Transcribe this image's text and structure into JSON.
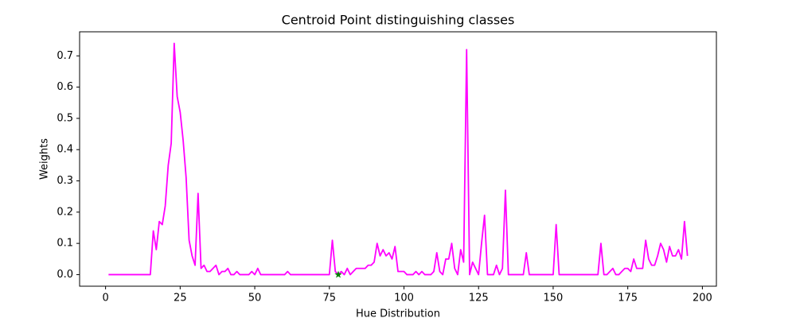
{
  "chart_data": {
    "type": "line",
    "title": "Centroid Point distinguishing classes",
    "x_label": "Hue Distribution",
    "y_label": "Weights",
    "x": [
      1,
      2,
      3,
      4,
      5,
      6,
      7,
      8,
      9,
      10,
      11,
      12,
      13,
      14,
      15,
      16,
      17,
      18,
      19,
      20,
      21,
      22,
      23,
      24,
      25,
      26,
      27,
      28,
      29,
      30,
      31,
      32,
      33,
      34,
      35,
      36,
      37,
      38,
      39,
      40,
      41,
      42,
      43,
      44,
      45,
      46,
      47,
      48,
      49,
      50,
      51,
      52,
      53,
      54,
      55,
      56,
      57,
      58,
      59,
      60,
      61,
      62,
      63,
      64,
      65,
      66,
      67,
      68,
      69,
      70,
      71,
      72,
      73,
      74,
      75,
      76,
      77,
      78,
      79,
      80,
      81,
      82,
      83,
      84,
      85,
      86,
      87,
      88,
      89,
      90,
      91,
      92,
      93,
      94,
      95,
      96,
      97,
      98,
      99,
      100,
      101,
      102,
      103,
      104,
      105,
      106,
      107,
      108,
      109,
      110,
      111,
      112,
      113,
      114,
      115,
      116,
      117,
      118,
      119,
      120,
      121,
      122,
      123,
      124,
      125,
      126,
      127,
      128,
      129,
      130,
      131,
      132,
      133,
      134,
      135,
      136,
      137,
      138,
      139,
      140,
      141,
      142,
      143,
      144,
      145,
      146,
      147,
      148,
      149,
      150,
      151,
      152,
      153,
      154,
      155,
      156,
      157,
      158,
      159,
      160,
      161,
      162,
      163,
      164,
      165,
      166,
      167,
      168,
      169,
      170,
      171,
      172,
      173,
      174,
      175,
      176,
      177,
      178,
      179,
      180,
      181,
      182,
      183,
      184,
      185,
      186,
      187,
      188,
      189,
      190,
      191,
      192,
      193,
      194,
      195
    ],
    "series": [
      {
        "color": "#ff00ff",
        "values": [
          0,
          0,
          0,
          0,
          0,
          0,
          0,
          0,
          0,
          0,
          0,
          0,
          0,
          0,
          0,
          0.14,
          0.08,
          0.17,
          0.16,
          0.22,
          0.35,
          0.42,
          0.74,
          0.57,
          0.52,
          0.43,
          0.31,
          0.11,
          0.06,
          0.03,
          0.26,
          0.02,
          0.03,
          0.01,
          0.01,
          0.02,
          0.03,
          0,
          0.01,
          0.01,
          0.02,
          0,
          0,
          0.01,
          0,
          0,
          0,
          0,
          0.01,
          0,
          0.02,
          0,
          0,
          0,
          0,
          0,
          0,
          0,
          0,
          0,
          0.01,
          0,
          0,
          0,
          0,
          0,
          0,
          0,
          0,
          0,
          0,
          0,
          0,
          0,
          0,
          0.11,
          0.01,
          0,
          0.01,
          0,
          0.02,
          0,
          0.01,
          0.02,
          0.02,
          0.02,
          0.02,
          0.03,
          0.03,
          0.04,
          0.1,
          0.06,
          0.08,
          0.06,
          0.07,
          0.05,
          0.09,
          0.01,
          0.01,
          0.01,
          0,
          0,
          0,
          0.01,
          0,
          0.01,
          0,
          0,
          0,
          0.01,
          0.07,
          0.01,
          0,
          0.05,
          0.05,
          0.1,
          0.02,
          0,
          0.08,
          0.04,
          0.72,
          0,
          0.04,
          0.02,
          0,
          0.1,
          0.19,
          0,
          0,
          0,
          0.03,
          0,
          0.02,
          0.27,
          0,
          0,
          0,
          0,
          0,
          0,
          0.07,
          0,
          0,
          0,
          0,
          0,
          0,
          0,
          0,
          0,
          0.16,
          0,
          0,
          0,
          0,
          0,
          0,
          0,
          0,
          0,
          0,
          0,
          0,
          0,
          0,
          0.1,
          0,
          0,
          0.01,
          0.02,
          0,
          0,
          0.01,
          0.02,
          0.02,
          0.01,
          0.05,
          0.02,
          0.02,
          0.02,
          0.11,
          0.05,
          0.03,
          0.03,
          0.06,
          0.1,
          0.08,
          0.04,
          0.09,
          0.06,
          0.06,
          0.08,
          0.05,
          0.17,
          0.06
        ]
      },
      {
        "color": "#008000",
        "marker": "star",
        "x": [
          78
        ],
        "values": [
          0
        ]
      }
    ],
    "xlim": [
      -8.7,
      204.7
    ],
    "ylim": [
      -0.037,
      0.777
    ],
    "xticks": [
      0,
      25,
      50,
      75,
      100,
      125,
      150,
      175,
      200
    ],
    "yticks": [
      {
        "value": 0,
        "label": "0.0"
      },
      0.1,
      0.2,
      0.3,
      0.4,
      0.5,
      0.6,
      0.7
    ]
  }
}
